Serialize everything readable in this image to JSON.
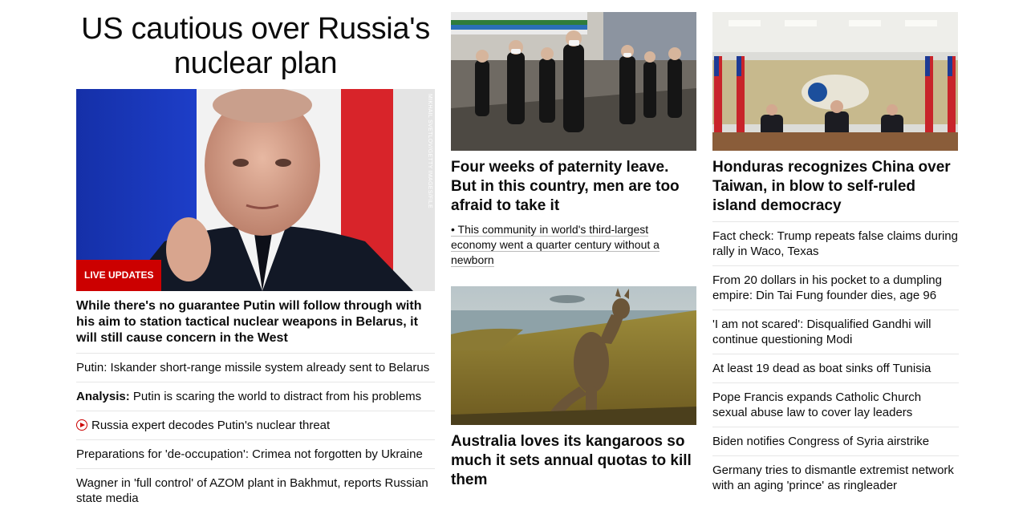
{
  "lead": {
    "title": "US cautious over Russia's nuclear plan",
    "image_credit": "MIKHAIL SVETLOV/GETTY IMAGES/FILE",
    "badge": "LIVE UPDATES",
    "description": "While there's no guarantee Putin will follow through with his aim to station tactical nuclear weapons in Belarus, it will still cause concern in the West",
    "related": [
      {
        "prefix": "",
        "text": "Putin: Iskander short-range missile system already sent to Belarus"
      },
      {
        "prefix": "Analysis:",
        "text": " Putin is scaring the world to distract from his problems"
      },
      {
        "prefix": "",
        "text": "Russia expert decodes Putin's nuclear threat",
        "icon": "video-play-icon"
      },
      {
        "prefix": "",
        "text": "Preparations for 'de-occupation': Crimea not forgotten by Ukraine"
      },
      {
        "prefix": "",
        "text": "Wagner in 'full control' of AZOM plant in Bakhmut, reports Russian state media"
      }
    ]
  },
  "middle": {
    "story1": {
      "title": "Four weeks of paternity leave. But in this country, men are too afraid to take it",
      "sub": "• This community in world's third-largest economy went a quarter century without a newborn"
    },
    "story2": {
      "title": "Australia loves its kangaroos so much it sets annual quotas to kill them"
    }
  },
  "right": {
    "story": {
      "title": "Honduras recognizes China over Taiwan, in blow to self-ruled island democracy"
    },
    "headlines": [
      "Fact check: Trump repeats false claims during rally in Waco, Texas",
      "From 20 dollars in his pocket to a dumpling empire: Din Tai Fung founder dies, age 96",
      "'I am not scared': Disqualified Gandhi will continue questioning Modi",
      "At least 19 dead as boat sinks off Tunisia",
      "Pope Francis expands Catholic Church sexual abuse law to cover lay leaders",
      "Biden notifies Congress of Syria airstrike",
      "Germany tries to dismantle extremist network with an aging 'prince' as ringleader"
    ]
  },
  "colors": {
    "badge_red": "#cc0000",
    "divider": "#e6e6e6"
  }
}
